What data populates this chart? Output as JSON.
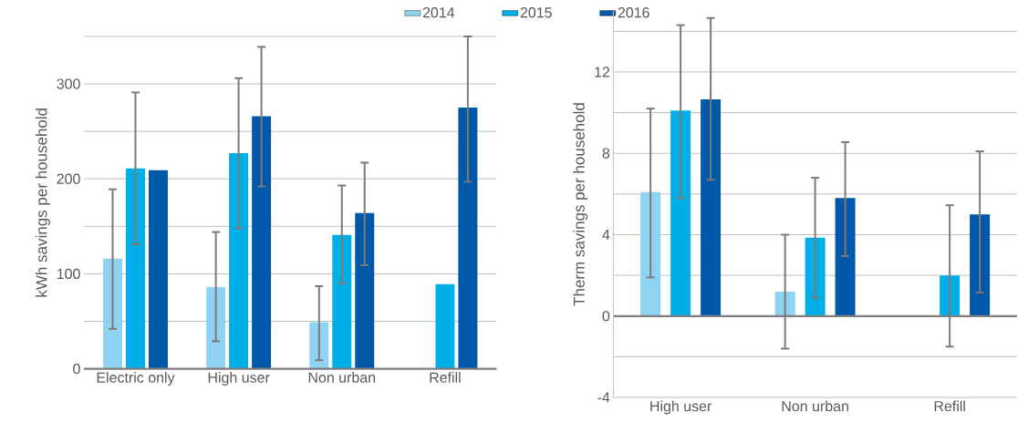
{
  "chart_data": [
    {
      "type": "bar",
      "ylabel": "kWh savings per household",
      "categories": [
        "Electric only",
        "High user",
        "Non urban",
        "Refill"
      ],
      "ylim": [
        0,
        350
      ],
      "yticks": [
        0,
        {
          "value": 50,
          "label": null
        },
        100,
        {
          "value": 150,
          "label": null
        },
        200,
        {
          "value": 250,
          "label": null
        },
        300,
        {
          "value": 350,
          "label": null
        }
      ],
      "grid": "y",
      "legend": "top right",
      "series": [
        {
          "name": "2014",
          "color": "#8fd3f3",
          "values": [
            116,
            86,
            49,
            null
          ],
          "errors": [
            [
              42,
              189
            ],
            [
              29,
              144
            ],
            [
              9,
              87
            ],
            null
          ]
        },
        {
          "name": "2015",
          "color": "#00aee8",
          "values": [
            211,
            227,
            141,
            89
          ],
          "errors": [
            [
              131,
              291
            ],
            [
              148,
              306
            ],
            [
              90,
              193
            ],
            null
          ]
        },
        {
          "name": "2016",
          "color": "#0058a8",
          "values": [
            209,
            266,
            164,
            275
          ],
          "errors": [
            null,
            [
              192,
              339
            ],
            [
              109,
              217
            ],
            [
              197,
              350
            ]
          ]
        }
      ]
    },
    {
      "type": "bar",
      "ylabel": "Therm savings per household",
      "categories": [
        "High user",
        "Non urban",
        "Refill"
      ],
      "ylim": [
        -4,
        15
      ],
      "yticks": [
        -4,
        {
          "value": -2,
          "label": null
        },
        0,
        {
          "value": 2,
          "label": null
        },
        4,
        {
          "value": 6,
          "label": null
        },
        8,
        {
          "value": 10,
          "label": null
        },
        12,
        {
          "value": 14,
          "label": null
        }
      ],
      "grid": "y",
      "series": [
        {
          "color": "#8fd3f3",
          "values": [
            6.1,
            1.2,
            null
          ],
          "errors": [
            [
              1.9,
              10.2
            ],
            [
              -1.6,
              4.0
            ],
            null
          ]
        },
        {
          "color": "#00aee8",
          "values": [
            10.1,
            3.85,
            2.0
          ],
          "errors": [
            [
              5.8,
              14.3
            ],
            [
              0.9,
              6.8
            ],
            [
              -1.5,
              5.45
            ]
          ]
        },
        {
          "color": "#0058a8",
          "values": [
            10.65,
            5.8,
            5.0
          ],
          "errors": [
            [
              6.7,
              14.65
            ],
            [
              2.95,
              8.55
            ],
            [
              1.15,
              8.1
            ]
          ]
        }
      ]
    }
  ]
}
